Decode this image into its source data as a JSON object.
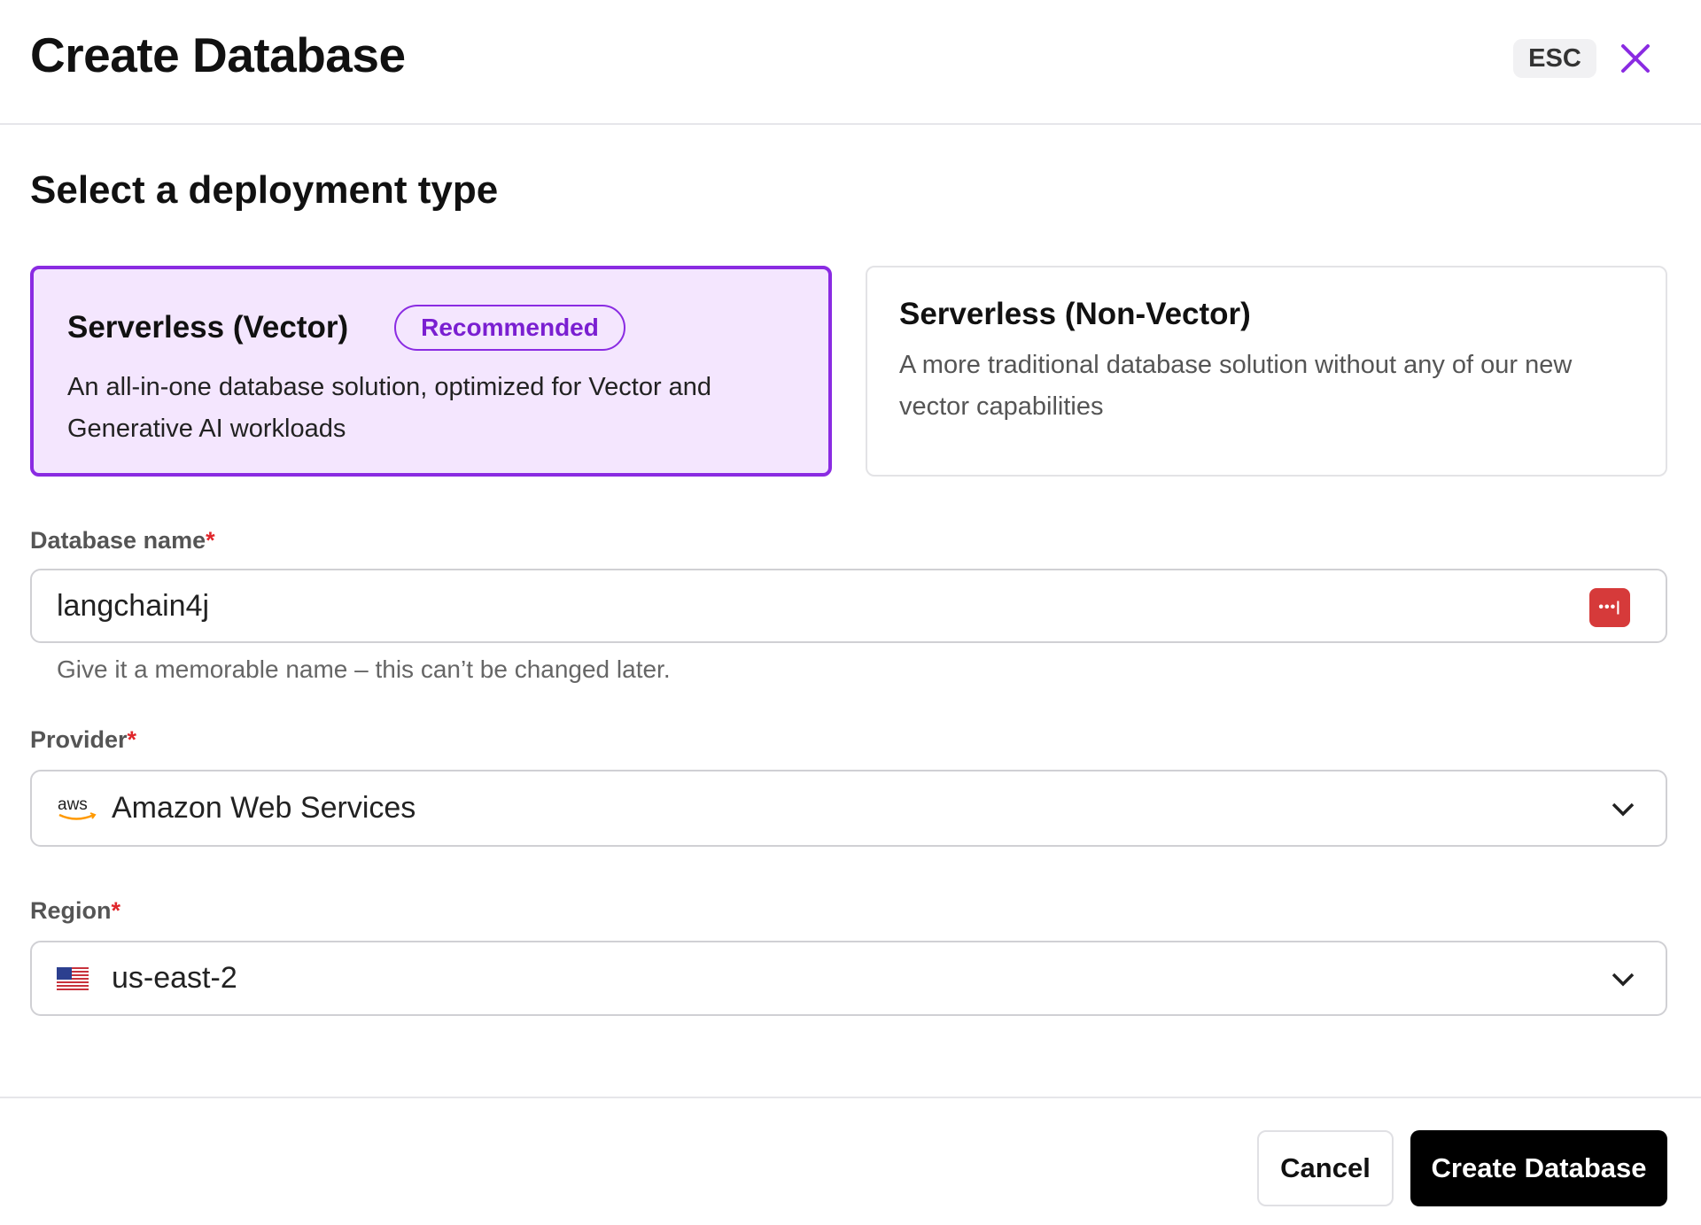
{
  "header": {
    "title": "Create Database",
    "esc_label": "ESC"
  },
  "section_title": "Select a deployment type",
  "deployment_types": [
    {
      "title": "Serverless (Vector)",
      "badge": "Recommended",
      "description": "An all-in-one database solution, optimized for Vector and Generative AI workloads",
      "selected": true
    },
    {
      "title": "Serverless (Non-Vector)",
      "description": "A more traditional database solution without any of our new vector capabilities",
      "selected": false
    }
  ],
  "form": {
    "database_name": {
      "label": "Database name",
      "required": "*",
      "value": "langchain4j",
      "helper": "Give it a memorable name – this can’t be changed later."
    },
    "provider": {
      "label": "Provider",
      "required": "*",
      "value": "Amazon Web Services",
      "icon": "aws-logo-icon"
    },
    "region": {
      "label": "Region",
      "required": "*",
      "value": "us-east-2",
      "icon": "us-flag-icon"
    }
  },
  "footer": {
    "cancel_label": "Cancel",
    "create_label": "Create Database"
  },
  "colors": {
    "accent": "#8a2be2",
    "selected_bg": "#f4e6fe",
    "required": "#e0262b",
    "primary_button": "#000000"
  }
}
